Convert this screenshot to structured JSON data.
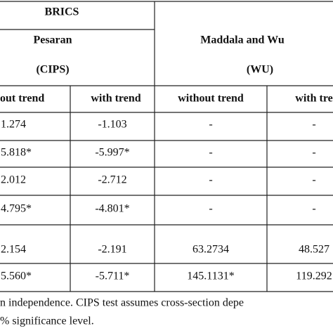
{
  "table": {
    "group_title": "BRICS",
    "tests": [
      {
        "name": "Pesaran",
        "abbr": "(CIPS)"
      },
      {
        "name": "Maddala and Wu",
        "abbr": "(WU)"
      }
    ],
    "columns": [
      "out trend",
      "with trend",
      "without trend",
      "with tre"
    ],
    "rows": [
      [
        "1.274",
        "-1.103",
        "-",
        "-"
      ],
      [
        "5.818*",
        "-5.997*",
        "-",
        "-"
      ],
      [
        "2.012",
        "-2.712",
        "-",
        "-"
      ],
      [
        "4.795*",
        "-4.801*",
        "-",
        "-"
      ],
      [
        "2.154",
        "-2.191",
        "63.2734",
        "48.527"
      ],
      [
        "5.560*",
        "-5.711*",
        "145.1131*",
        "119.292"
      ]
    ]
  },
  "footnote": [
    "n independence. CIPS test assumes cross-section depe",
    "% significance level."
  ]
}
